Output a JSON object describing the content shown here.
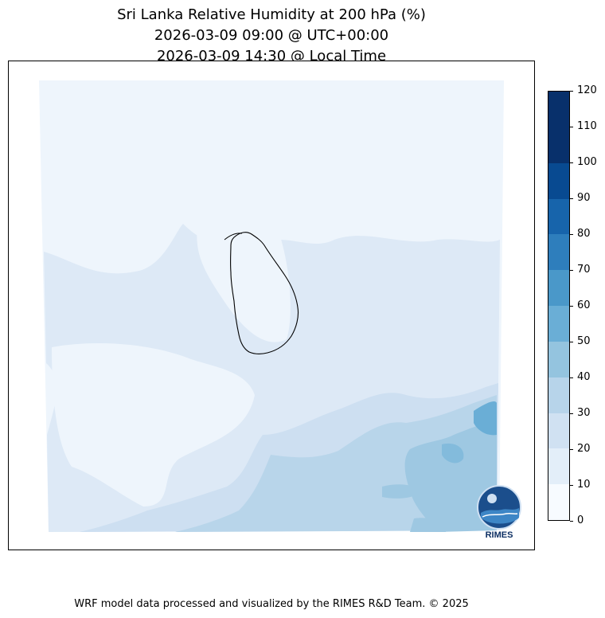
{
  "title": {
    "line1": "Sri Lanka Relative Humidity at 200 hPa (%)",
    "line2": "2026-03-09 09:00 @ UTC+00:00",
    "line3": "2026-03-09 14:30 @ Local Time"
  },
  "footer": "WRF model data processed and visualized by the RIMES R&D Team. © 2025",
  "logo_text": "RIMES",
  "colorbar": {
    "ticks": [
      "0",
      "10",
      "20",
      "30",
      "40",
      "50",
      "60",
      "70",
      "80",
      "90",
      "100",
      "110",
      "120"
    ],
    "colors": [
      "#f7fbff",
      "#e3eef9",
      "#d0e1f2",
      "#b7d4ea",
      "#94c4df",
      "#6aaed6",
      "#4a98c9",
      "#2e7ebc",
      "#1764ab",
      "#084a91",
      "#08306b",
      "#08306b"
    ]
  },
  "chart_data": {
    "type": "heatmap",
    "title": "Sri Lanka Relative Humidity at 200 hPa (%)",
    "subtitle": [
      "2026-03-09 09:00 @ UTC+00:00",
      "2026-03-09 14:30 @ Local Time"
    ],
    "variable": "Relative Humidity",
    "units": "%",
    "levels": [
      0,
      10,
      20,
      30,
      40,
      50,
      60,
      70,
      80,
      90,
      100,
      110,
      120
    ],
    "field_summary": [
      {
        "region": "north",
        "range": [
          0,
          10
        ]
      },
      {
        "region": "central",
        "range": [
          10,
          20
        ]
      },
      {
        "region": "south-west",
        "range": [
          10,
          20
        ]
      },
      {
        "region": "south-east",
        "range": [
          30,
          50
        ]
      },
      {
        "region": "far south-east",
        "range": [
          50,
          60
        ]
      }
    ],
    "grid": false,
    "legend": "right"
  }
}
